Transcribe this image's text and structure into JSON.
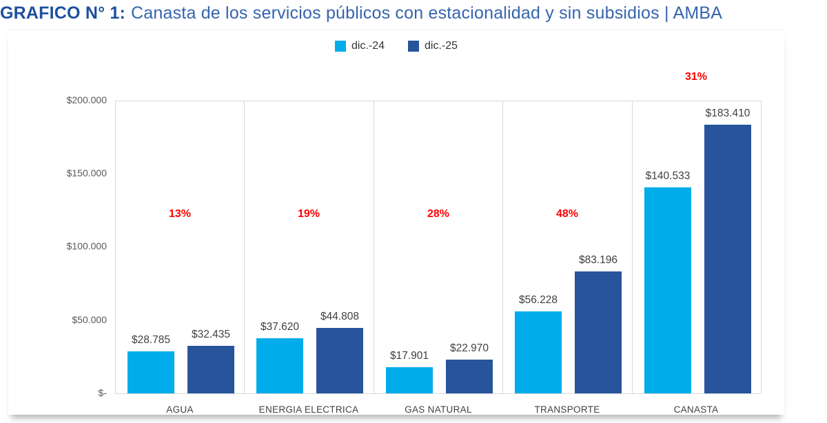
{
  "title": {
    "prefix": "GRAFICO N° 1:",
    "text": "Canasta de los servicios públicos con estacionalidad y sin subsidios | AMBA"
  },
  "legend": [
    {
      "label": "dic.-24",
      "color": "#00ACEA"
    },
    {
      "label": "dic.-25",
      "color": "#27549B"
    }
  ],
  "chart_data": {
    "type": "bar",
    "title": "Canasta de los servicios públicos con estacionalidad y sin subsidios | AMBA",
    "categories": [
      "AGUA",
      "ENERGIA ELECTRICA",
      "GAS NATURAL",
      "TRANSPORTE",
      "CANASTA"
    ],
    "series": [
      {
        "name": "dic.-24",
        "color": "#00ACEA",
        "values": [
          28785,
          37620,
          17901,
          56228,
          140533
        ],
        "labels": [
          "$28.785",
          "$37.620",
          "$17.901",
          "$56.228",
          "$140.533"
        ]
      },
      {
        "name": "dic.-25",
        "color": "#27549B",
        "values": [
          32435,
          44808,
          22970,
          83196,
          183410
        ],
        "labels": [
          "$32.435",
          "$44.808",
          "$22.970",
          "$83.196",
          "$183.410"
        ]
      }
    ],
    "pct_labels": [
      "13%",
      "19%",
      "28%",
      "48%",
      "31%"
    ],
    "pct_color": "#FF0000",
    "y_ticks": [
      {
        "value": 0,
        "label": "$-"
      },
      {
        "value": 50000,
        "label": "$50.000"
      },
      {
        "value": 100000,
        "label": "$100.000"
      },
      {
        "value": 150000,
        "label": "$150.000"
      },
      {
        "value": 200000,
        "label": "$200.000"
      }
    ],
    "ylim": [
      0,
      200000
    ],
    "grid": "top line, baseline and vertical category separators",
    "legend_position": "top-center",
    "xlabel": "",
    "ylabel": ""
  }
}
